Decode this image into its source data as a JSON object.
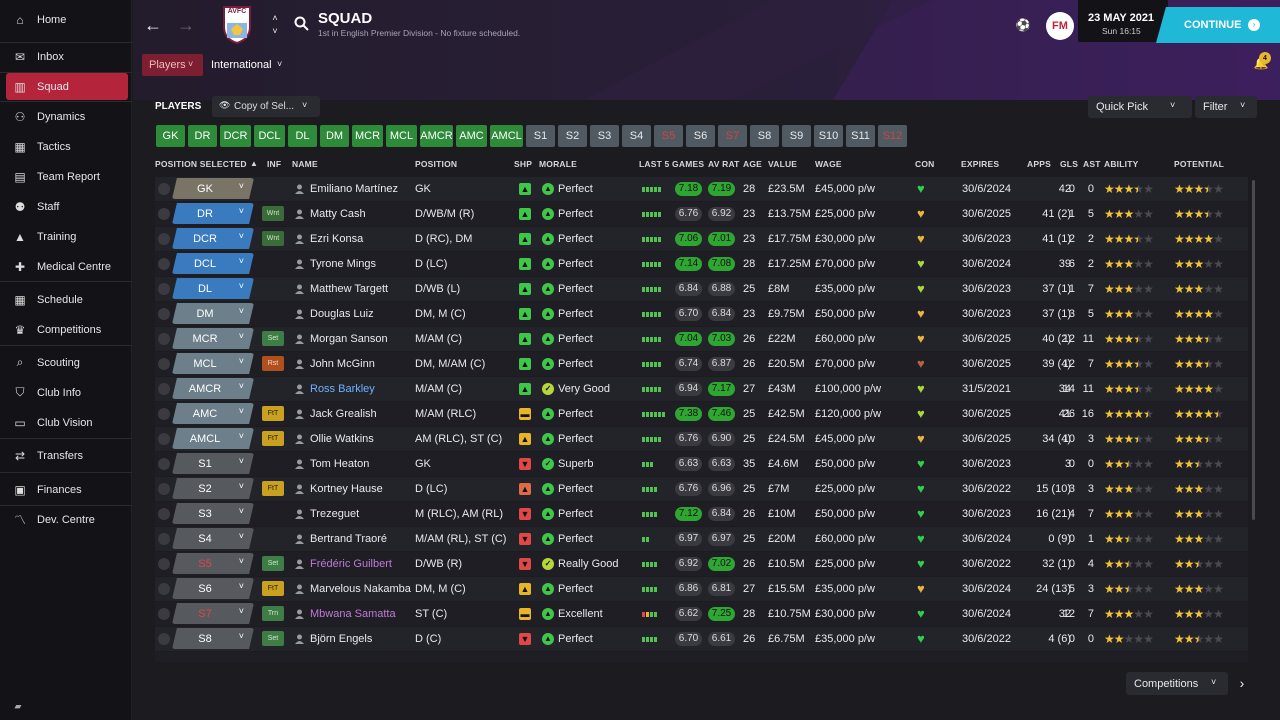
{
  "sidebar": {
    "items": [
      {
        "icon": "home-icon",
        "label": "Home"
      },
      {
        "icon": "inbox-icon",
        "label": "Inbox"
      },
      {
        "icon": "squad-shirt-icon",
        "label": "Squad"
      },
      {
        "icon": "dynamics-icon",
        "label": "Dynamics"
      },
      {
        "icon": "tactics-board-icon",
        "label": "Tactics"
      },
      {
        "icon": "report-icon",
        "label": "Team Report"
      },
      {
        "icon": "staff-icon",
        "label": "Staff"
      },
      {
        "icon": "training-cone-icon",
        "label": "Training"
      },
      {
        "icon": "medical-kit-icon",
        "label": "Medical Centre"
      },
      {
        "icon": "calendar-icon",
        "label": "Schedule"
      },
      {
        "icon": "trophy-icon",
        "label": "Competitions"
      },
      {
        "icon": "magnifier-icon",
        "label": "Scouting"
      },
      {
        "icon": "shield-icon",
        "label": "Club Info"
      },
      {
        "icon": "briefcase-icon",
        "label": "Club Vision"
      },
      {
        "icon": "transfer-arrows-icon",
        "label": "Transfers"
      },
      {
        "icon": "money-icon",
        "label": "Finances"
      },
      {
        "icon": "development-graph-icon",
        "label": "Dev. Centre"
      }
    ]
  },
  "header": {
    "badge": "AVFC",
    "title": "SQUAD",
    "subtitle": "1st in English Premier Division - No fixture scheduled.",
    "date": "23 MAY 2021",
    "time": "Sun 16:15",
    "logo": "FM",
    "continue_label": "CONTINUE",
    "notif_count": "4"
  },
  "tabs": {
    "players": "Players",
    "international": "International"
  },
  "section": {
    "title": "PLAYERS",
    "view": "Copy of Sel...",
    "quick_pick": "Quick Pick",
    "filter": "Filter"
  },
  "position_grid": [
    {
      "l": "GK",
      "s": "g"
    },
    {
      "l": "DR",
      "s": "g"
    },
    {
      "l": "DCR",
      "s": "g"
    },
    {
      "l": "DCL",
      "s": "g"
    },
    {
      "l": "DL",
      "s": "g"
    },
    {
      "l": "DM",
      "s": "g"
    },
    {
      "l": "MCR",
      "s": "g"
    },
    {
      "l": "MCL",
      "s": "g"
    },
    {
      "l": "AMCR",
      "s": "g"
    },
    {
      "l": "AMC",
      "s": "g"
    },
    {
      "l": "AMCL",
      "s": "g"
    },
    {
      "l": "S1",
      "s": "s"
    },
    {
      "l": "S2",
      "s": "s"
    },
    {
      "l": "S3",
      "s": "s"
    },
    {
      "l": "S4",
      "s": "s"
    },
    {
      "l": "S5",
      "s": "r"
    },
    {
      "l": "S6",
      "s": "s"
    },
    {
      "l": "S7",
      "s": "r"
    },
    {
      "l": "S8",
      "s": "s"
    },
    {
      "l": "S9",
      "s": "s"
    },
    {
      "l": "S10",
      "s": "s"
    },
    {
      "l": "S11",
      "s": "s"
    },
    {
      "l": "S12",
      "s": "r"
    }
  ],
  "columns": {
    "position": "POSITION SELECTED",
    "inf": "INF",
    "name": "NAME",
    "pos2": "POSITION",
    "shp": "SHP",
    "morale": "MORALE",
    "last5": "LAST 5 GAMES",
    "avrat": "AV RAT",
    "age": "AGE",
    "value": "VALUE",
    "wage": "WAGE",
    "con": "CON",
    "expires": "EXPIRES",
    "apps": "APPS",
    "gls": "GLS",
    "ast": "AST",
    "ability": "ABILITY",
    "potential": "POTENTIAL"
  },
  "colors": {
    "gk": "#7a7467",
    "def": "#3a7bc0",
    "mid": "#6c7f8a",
    "att": "#6a6e73",
    "sub": "#56595e",
    "green": "#2e8b3a",
    "accent_red": "#b4253b",
    "continue": "#1fb8d6"
  },
  "players": [
    {
      "sel": "GK",
      "inf": "",
      "name": "Emiliano Martínez",
      "position": "GK",
      "shp": "up",
      "morale": "Perfect",
      "form": 5,
      "last5": "7.18",
      "av": "7.19",
      "age": "28",
      "value": "£23.5M",
      "wage": "£45,000 p/w",
      "con": "green",
      "expires": "30/6/2024",
      "apps": "42",
      "gls": "0",
      "ast": "0",
      "ability": 3.5,
      "potential": 3.5
    },
    {
      "sel": "DR",
      "inf": "Wnt",
      "name": "Matty Cash",
      "position": "D/WB/M (R)",
      "shp": "up",
      "morale": "Perfect",
      "form": 5,
      "last5": "6.76",
      "av": "6.92",
      "age": "23",
      "value": "£13.75M",
      "wage": "£25,000 p/w",
      "con": "yellow",
      "expires": "30/6/2025",
      "apps": "41 (2)",
      "gls": "1",
      "ast": "5",
      "ability": 3,
      "potential": 3.5
    },
    {
      "sel": "DCR",
      "inf": "Wnt",
      "name": "Ezri Konsa",
      "position": "D (RC), DM",
      "shp": "up",
      "morale": "Perfect",
      "form": 5,
      "last5": "7.06",
      "av": "7.01",
      "age": "23",
      "value": "£17.75M",
      "wage": "£30,000 p/w",
      "con": "yellow",
      "expires": "30/6/2023",
      "apps": "41 (1)",
      "gls": "2",
      "ast": "2",
      "ability": 3.5,
      "potential": 4
    },
    {
      "sel": "DCL",
      "inf": "",
      "name": "Tyrone Mings",
      "position": "D (LC)",
      "shp": "up",
      "morale": "Perfect",
      "form": 5,
      "last5": "7.14",
      "av": "7.08",
      "age": "28",
      "value": "£17.25M",
      "wage": "£70,000 p/w",
      "con": "lime",
      "expires": "30/6/2024",
      "apps": "39",
      "gls": "6",
      "ast": "2",
      "ability": 3,
      "potential": 3
    },
    {
      "sel": "DL",
      "inf": "",
      "name": "Matthew Targett",
      "position": "D/WB (L)",
      "shp": "up",
      "morale": "Perfect",
      "form": 5,
      "last5": "6.84",
      "av": "6.88",
      "age": "25",
      "value": "£8M",
      "wage": "£35,000 p/w",
      "con": "lime",
      "expires": "30/6/2023",
      "apps": "37 (1)",
      "gls": "1",
      "ast": "7",
      "ability": 3,
      "potential": 3
    },
    {
      "sel": "DM",
      "inf": "",
      "name": "Douglas Luiz",
      "position": "DM, M (C)",
      "shp": "up",
      "morale": "Perfect",
      "form": 5,
      "last5": "6.70",
      "av": "6.84",
      "age": "23",
      "value": "£9.75M",
      "wage": "£50,000 p/w",
      "con": "yellow",
      "expires": "30/6/2023",
      "apps": "37 (1)",
      "gls": "3",
      "ast": "5",
      "ability": 3,
      "potential": 4
    },
    {
      "sel": "MCR",
      "inf": "Set",
      "name": "Morgan Sanson",
      "position": "M/AM (C)",
      "shp": "up",
      "morale": "Perfect",
      "form": 5,
      "last5": "7.04",
      "av": "7.03",
      "age": "26",
      "value": "£22M",
      "wage": "£60,000 p/w",
      "con": "yellow",
      "expires": "30/6/2025",
      "apps": "40 (2)",
      "gls": "12",
      "ast": "11",
      "ability": 3.5,
      "potential": 3.5
    },
    {
      "sel": "MCL",
      "inf": "Rst",
      "name": "John McGinn",
      "position": "DM, M/AM (C)",
      "shp": "up",
      "morale": "Perfect",
      "form": 5,
      "last5": "6.74",
      "av": "6.87",
      "age": "26",
      "value": "£20.5M",
      "wage": "£70,000 p/w",
      "con": "brown",
      "expires": "30/6/2025",
      "apps": "39 (4)",
      "gls": "12",
      "ast": "7",
      "ability": 3.5,
      "potential": 3.5
    },
    {
      "sel": "AMCR",
      "inf": "",
      "name": "Ross Barkley",
      "position": "M/AM (C)",
      "shp": "up",
      "morale": "Very Good",
      "form": 5,
      "last5": "6.94",
      "av": "7.17",
      "age": "27",
      "value": "£43M",
      "wage": "£100,000 p/w",
      "con": "lime",
      "expires": "31/5/2021",
      "apps": "34",
      "gls": "14",
      "ast": "11",
      "ability": 3.5,
      "potential": 4,
      "loan": true
    },
    {
      "sel": "AMC",
      "inf": "FtT",
      "name": "Jack Grealish",
      "position": "M/AM (RLC)",
      "shp": "mid",
      "morale": "Perfect",
      "form": 6,
      "last5": "7.38",
      "av": "7.46",
      "age": "25",
      "value": "£42.5M",
      "wage": "£120,000 p/w",
      "con": "lime",
      "expires": "30/6/2025",
      "apps": "41",
      "gls": "26",
      "ast": "16",
      "ability": 4.5,
      "potential": 4.5
    },
    {
      "sel": "AMCL",
      "inf": "FtT",
      "name": "Ollie Watkins",
      "position": "AM (RLC), ST (C)",
      "shp": "upmid",
      "morale": "Perfect",
      "form": 5,
      "last5": "6.76",
      "av": "6.90",
      "age": "25",
      "value": "£24.5M",
      "wage": "£45,000 p/w",
      "con": "yellow",
      "expires": "30/6/2025",
      "apps": "34 (4)",
      "gls": "10",
      "ast": "3",
      "ability": 3.5,
      "potential": 3.5
    },
    {
      "sel": "S1",
      "inf": "",
      "name": "Tom Heaton",
      "position": "GK",
      "shp": "down",
      "morale": "Superb",
      "form": 3,
      "last5": "6.63",
      "av": "6.63",
      "age": "35",
      "value": "£4.6M",
      "wage": "£50,000 p/w",
      "con": "green",
      "expires": "30/6/2023",
      "apps": "3",
      "gls": "0",
      "ast": "0",
      "ability": 2.5,
      "potential": 2.5
    },
    {
      "sel": "S2",
      "inf": "FtT",
      "name": "Kortney Hause",
      "position": "D (LC)",
      "shp": "downr",
      "morale": "Perfect",
      "form": 4,
      "last5": "6.76",
      "av": "6.96",
      "age": "25",
      "value": "£7M",
      "wage": "£25,000 p/w",
      "con": "green",
      "expires": "30/6/2022",
      "apps": "15 (10)",
      "gls": "3",
      "ast": "3",
      "ability": 3,
      "potential": 3
    },
    {
      "sel": "S3",
      "inf": "",
      "name": "Trezeguet",
      "position": "M (RLC), AM (RL)",
      "shp": "down",
      "morale": "Perfect",
      "form": 4,
      "last5": "7.12",
      "av": "6.84",
      "age": "26",
      "value": "£10M",
      "wage": "£50,000 p/w",
      "con": "green",
      "expires": "30/6/2023",
      "apps": "16 (21)",
      "gls": "4",
      "ast": "7",
      "ability": 3,
      "potential": 3
    },
    {
      "sel": "S4",
      "inf": "",
      "name": "Bertrand Traoré",
      "position": "M/AM (RL), ST (C)",
      "shp": "down",
      "morale": "Perfect",
      "form": 2,
      "last5": "6.97",
      "av": "6.97",
      "age": "25",
      "value": "£20M",
      "wage": "£60,000 p/w",
      "con": "green",
      "expires": "30/6/2024",
      "apps": "0 (9)",
      "gls": "0",
      "ast": "1",
      "ability": 2.5,
      "potential": 3,
      "sub": true
    },
    {
      "sel": "S5",
      "inf": "Set",
      "name": "Frédéric Guilbert",
      "position": "D/WB (R)",
      "shp": "down",
      "morale": "Really Good",
      "form": 4,
      "last5": "6.92",
      "av": "7.02",
      "age": "26",
      "value": "£10.5M",
      "wage": "£25,000 p/w",
      "con": "green",
      "expires": "30/6/2022",
      "apps": "32 (1)",
      "gls": "0",
      "ast": "4",
      "ability": 2.5,
      "potential": 2.5,
      "red": true,
      "purple": true
    },
    {
      "sel": "S6",
      "inf": "FtT",
      "name": "Marvelous Nakamba",
      "position": "DM, M (C)",
      "shp": "upmid",
      "morale": "Perfect",
      "form": 4,
      "last5": "6.86",
      "av": "6.81",
      "age": "27",
      "value": "£15.5M",
      "wage": "£35,000 p/w",
      "con": "yellow",
      "expires": "30/6/2024",
      "apps": "24 (13)",
      "gls": "5",
      "ast": "3",
      "ability": 2.5,
      "potential": 3
    },
    {
      "sel": "S7",
      "inf": "Trn",
      "name": "Mbwana Samatta",
      "position": "ST (C)",
      "shp": "mid",
      "morale": "Excellent",
      "form": 4,
      "last5": "6.62",
      "av": "7.25",
      "age": "28",
      "value": "£10.75M",
      "wage": "£30,000 p/w",
      "con": "green",
      "expires": "30/6/2024",
      "apps": "32",
      "gls": "12",
      "ast": "7",
      "ability": 3,
      "potential": 3,
      "red": true,
      "purple": true
    },
    {
      "sel": "S8",
      "inf": "Set",
      "name": "Björn Engels",
      "position": "D (C)",
      "shp": "down",
      "morale": "Perfect",
      "form": 4,
      "last5": "6.70",
      "av": "6.61",
      "age": "26",
      "value": "£6.75M",
      "wage": "£35,000 p/w",
      "con": "green",
      "expires": "30/6/2022",
      "apps": "4 (6)",
      "gls": "0",
      "ast": "0",
      "ability": 2,
      "potential": 2.5
    }
  ],
  "footer": {
    "competitions": "Competitions"
  }
}
